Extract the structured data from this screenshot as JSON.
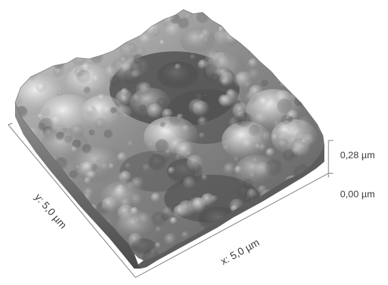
{
  "figure": {
    "x_axis_label": "x: 5,0 µm",
    "y_axis_label": "y: 5,0 µm",
    "z_scale": {
      "top_label": "0,28 µm",
      "bottom_label": "0,00 µm"
    }
  },
  "colors": {
    "background": "#ffffff",
    "axis_line": "#8a8a8a",
    "text": "#3c3c3c",
    "surface_dark": "#3a3a3a",
    "surface_light": "#e8e8e8"
  }
}
